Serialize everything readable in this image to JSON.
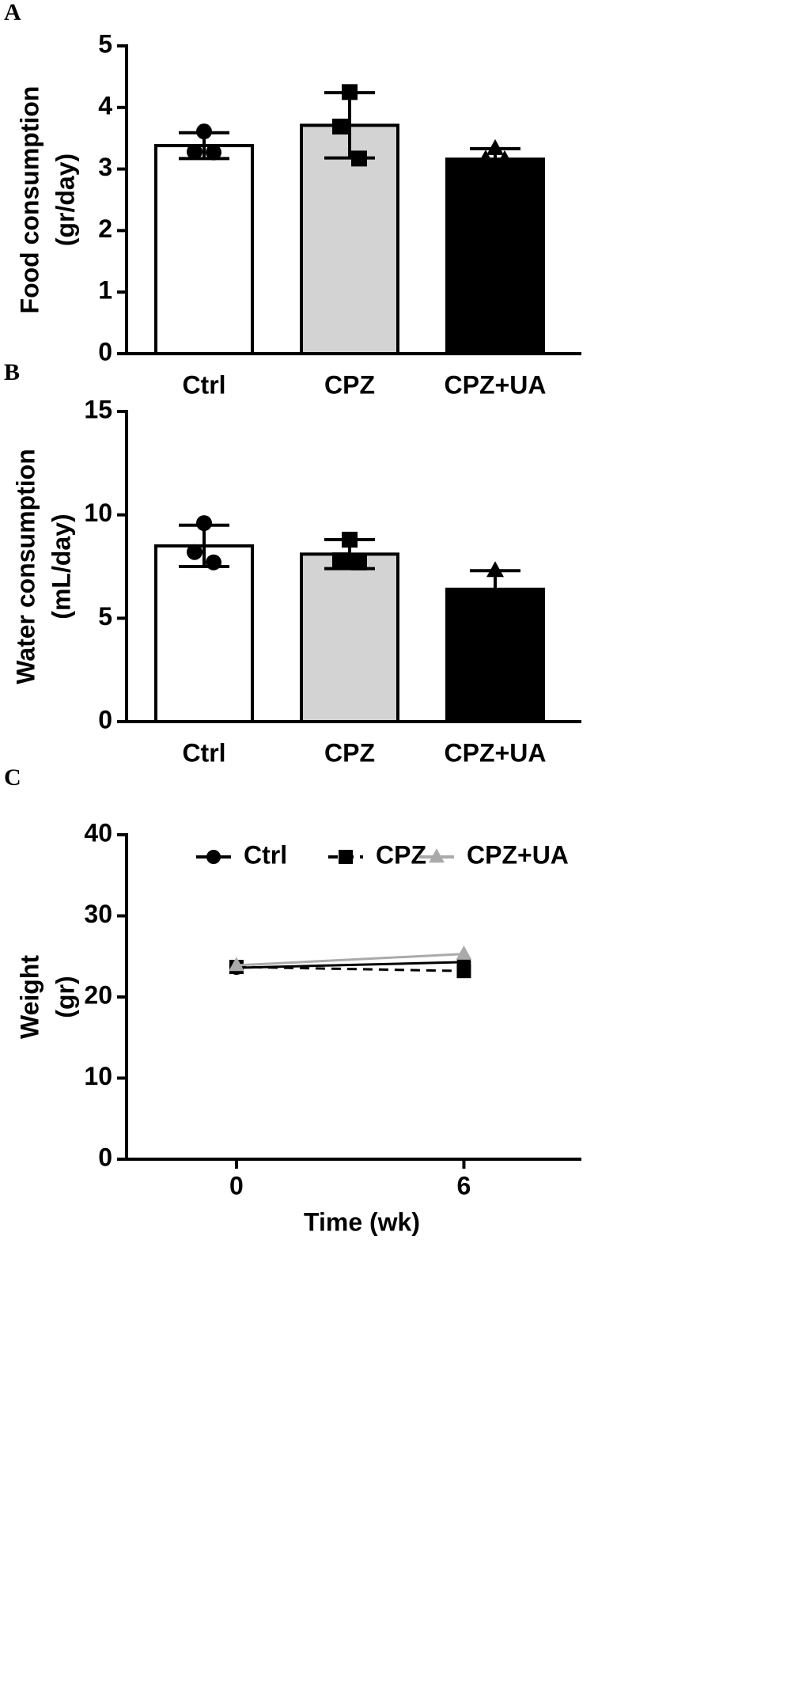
{
  "chart_data": [
    {
      "type": "bar",
      "panel_label": "A",
      "ylabel": [
        "Food consumption",
        "(gr/day)"
      ],
      "categories": [
        "Ctrl",
        "CPZ",
        "CPZ+UA"
      ],
      "values": [
        3.38,
        3.71,
        3.16
      ],
      "errors": [
        0.21,
        0.53,
        0.17
      ],
      "points": [
        [
          3.61,
          3.28,
          3.27
        ],
        [
          4.25,
          3.69,
          3.17
        ],
        [
          3.33,
          3.16,
          3.15
        ]
      ],
      "colors": [
        "#ffffff",
        "#d3d3d3",
        "#000000"
      ],
      "markers": [
        "circle",
        "square",
        "triangle"
      ],
      "ylim": [
        0,
        5
      ],
      "yticks": [
        0,
        1,
        2,
        3,
        4,
        5
      ]
    },
    {
      "type": "bar",
      "panel_label": "B",
      "ylabel": [
        "Water consumption",
        "(mL/day)"
      ],
      "categories": [
        "Ctrl",
        "CPZ",
        "CPZ+UA"
      ],
      "values": [
        8.5,
        8.1,
        6.4
      ],
      "errors": [
        1.0,
        0.7,
        0.9
      ],
      "points": [
        [
          9.6,
          8.2,
          7.7
        ],
        [
          8.8,
          7.8,
          7.7
        ],
        [
          7.3,
          6.0,
          5.9
        ]
      ],
      "colors": [
        "#ffffff",
        "#d3d3d3",
        "#000000"
      ],
      "markers": [
        "circle",
        "square",
        "triangle"
      ],
      "ylim": [
        0,
        15
      ],
      "yticks": [
        0,
        5,
        10,
        15
      ]
    },
    {
      "type": "line",
      "panel_label": "C",
      "ylabel": [
        "Weight",
        "(gr)"
      ],
      "xlabel": "Time (wk)",
      "x": [
        0,
        6
      ],
      "xlim": [
        -2.9,
        9.1
      ],
      "xticks": [
        0,
        6
      ],
      "ylim": [
        0,
        40
      ],
      "yticks": [
        0,
        10,
        20,
        30,
        40
      ],
      "series": [
        {
          "name": "Ctrl",
          "color": "#000000",
          "marker": "circle",
          "line_style": "solid",
          "values": [
            23.6,
            24.3
          ]
        },
        {
          "name": "CPZ",
          "color": "#000000",
          "marker": "square",
          "line_style": "dashed",
          "values": [
            23.7,
            23.2
          ]
        },
        {
          "name": "CPZ+UA",
          "color": "#aaaaaa",
          "marker": "triangle",
          "line_style": "solid",
          "values": [
            23.9,
            25.3
          ]
        }
      ]
    }
  ]
}
